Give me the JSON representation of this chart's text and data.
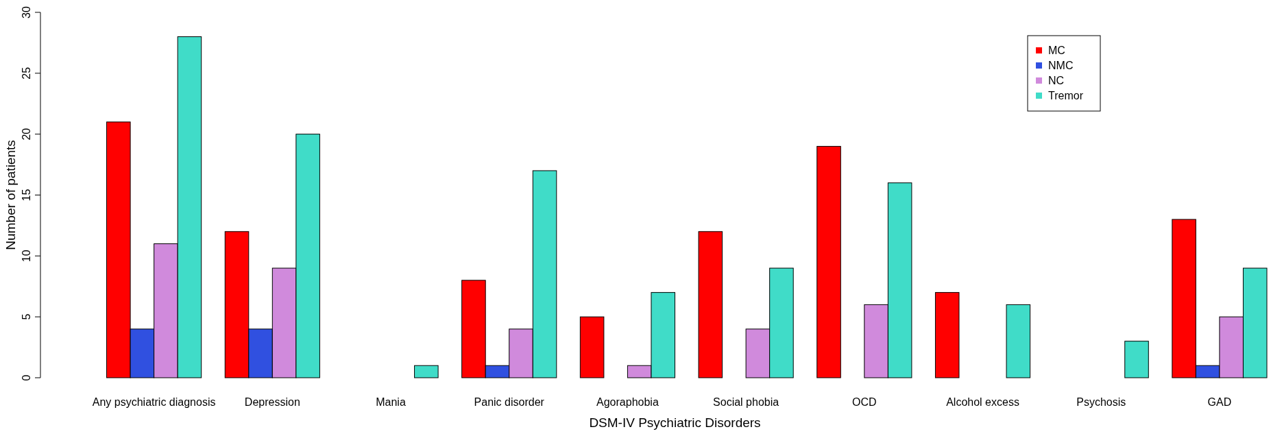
{
  "chart_data": {
    "type": "bar",
    "xlabel": "DSM-IV Psychiatric Disorders",
    "ylabel": "Number of patients",
    "categories": [
      "Any psychiatric diagnosis",
      "Depression",
      "Mania",
      "Panic disorder",
      "Agoraphobia",
      "Social phobia",
      "OCD",
      "Alcohol excess",
      "Psychosis",
      "GAD"
    ],
    "series": [
      {
        "name": "MC",
        "color": "#ff0000",
        "values": [
          21,
          12,
          0,
          8,
          5,
          12,
          19,
          7,
          0,
          13
        ]
      },
      {
        "name": "NMC",
        "color": "#3050e0",
        "values": [
          4,
          4,
          0,
          1,
          0,
          0,
          0,
          0,
          0,
          1
        ]
      },
      {
        "name": "NC",
        "color": "#d08adc",
        "values": [
          11,
          9,
          0,
          4,
          1,
          4,
          6,
          0,
          0,
          5
        ]
      },
      {
        "name": "Tremor",
        "color": "#40dcc8",
        "values": [
          28,
          20,
          1,
          17,
          7,
          9,
          16,
          6,
          3,
          9
        ]
      }
    ],
    "ylim": [
      0,
      30
    ],
    "yticks": [
      0,
      5,
      10,
      15,
      20,
      25,
      30
    ],
    "grid": false,
    "legend": "top right"
  }
}
